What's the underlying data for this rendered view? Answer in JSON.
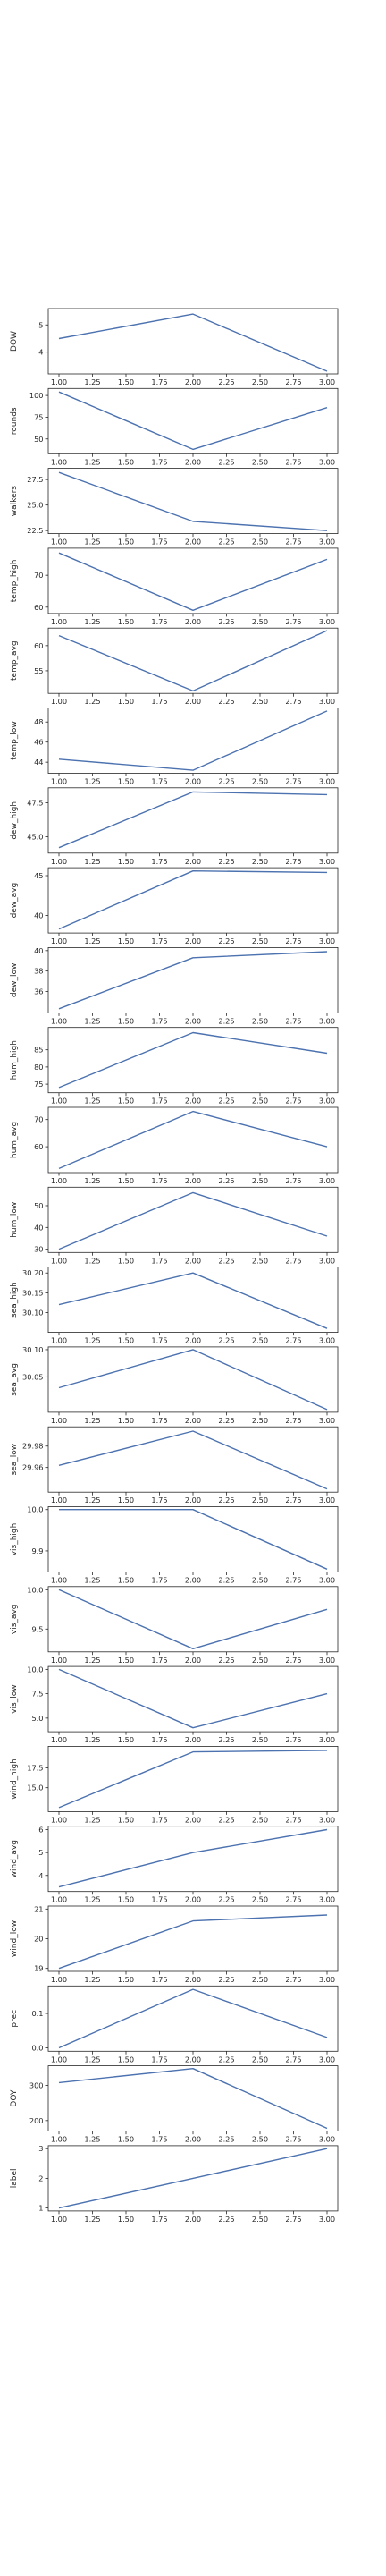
{
  "chart_data": {
    "type": "line",
    "x": [
      1,
      2,
      3
    ],
    "grid": false,
    "legend": "none",
    "line_color": "#4c72b0",
    "x_ticks_shown_on_last_panel_only": false,
    "panels": [
      {
        "ylabel": "DOW",
        "values": [
          4.5,
          5.4,
          3.3
        ],
        "ylim": [
          3.2,
          5.6
        ],
        "yticks": [
          4,
          5
        ]
      },
      {
        "ylabel": "rounds",
        "values": [
          104,
          38,
          86
        ],
        "ylim": [
          33,
          108
        ],
        "yticks": [
          50,
          75,
          100
        ]
      },
      {
        "ylabel": "walkers",
        "values": [
          28.2,
          23.4,
          22.5
        ],
        "ylim": [
          22.2,
          28.6
        ],
        "yticks": [
          22.5,
          25.0,
          27.5
        ]
      },
      {
        "ylabel": "temp_high",
        "values": [
          77,
          59,
          75
        ],
        "ylim": [
          58,
          78.5
        ],
        "yticks": [
          60,
          70
        ]
      },
      {
        "ylabel": "temp_avg",
        "values": [
          62,
          51,
          63
        ],
        "ylim": [
          50.5,
          63.5
        ],
        "yticks": [
          55,
          60
        ]
      },
      {
        "ylabel": "temp_low",
        "values": [
          44.3,
          43.2,
          49.1
        ],
        "ylim": [
          42.9,
          49.4
        ],
        "yticks": [
          44,
          46,
          48
        ]
      },
      {
        "ylabel": "dew_high",
        "values": [
          44.2,
          48.3,
          48.1
        ],
        "ylim": [
          43.8,
          48.6
        ],
        "yticks": [
          45.0,
          47.5
        ]
      },
      {
        "ylabel": "dew_avg",
        "values": [
          38.3,
          45.6,
          45.4
        ],
        "ylim": [
          37.8,
          46.0
        ],
        "yticks": [
          40,
          45
        ]
      },
      {
        "ylabel": "dew_low",
        "values": [
          34.3,
          39.3,
          39.9
        ],
        "ylim": [
          33.9,
          40.3
        ],
        "yticks": [
          36,
          38,
          40
        ]
      },
      {
        "ylabel": "hum_high",
        "values": [
          74,
          90,
          84
        ],
        "ylim": [
          72.5,
          91.5
        ],
        "yticks": [
          75,
          80,
          85
        ]
      },
      {
        "ylabel": "hum_avg",
        "values": [
          52,
          73,
          60
        ],
        "ylim": [
          50.5,
          74.5
        ],
        "yticks": [
          60,
          70
        ]
      },
      {
        "ylabel": "hum_low",
        "values": [
          30,
          56,
          36
        ],
        "ylim": [
          28.5,
          58.5
        ],
        "yticks": [
          30,
          40,
          50
        ]
      },
      {
        "ylabel": "sea_high",
        "values": [
          30.12,
          30.2,
          30.06
        ],
        "ylim": [
          30.05,
          30.215
        ],
        "yticks": [
          30.1,
          30.15,
          30.2
        ]
      },
      {
        "ylabel": "sea_avg",
        "values": [
          30.03,
          30.1,
          29.99
        ],
        "ylim": [
          29.985,
          30.105
        ],
        "yticks": [
          30.05,
          30.1
        ]
      },
      {
        "ylabel": "sea_low",
        "values": [
          29.962,
          29.994,
          29.94
        ],
        "ylim": [
          29.937,
          29.998
        ],
        "yticks": [
          29.96,
          29.98
        ]
      },
      {
        "ylabel": "vis_high",
        "values": [
          10.0,
          10.0,
          9.856
        ],
        "ylim": [
          9.849,
          10.007
        ],
        "yticks": [
          9.9,
          10.0
        ]
      },
      {
        "ylabel": "vis_avg",
        "values": [
          10.0,
          9.25,
          9.75
        ],
        "ylim": [
          9.21,
          10.04
        ],
        "yticks": [
          9.5,
          10.0
        ]
      },
      {
        "ylabel": "vis_low",
        "values": [
          10.0,
          4.0,
          7.5
        ],
        "ylim": [
          3.6,
          10.3
        ],
        "yticks": [
          5.0,
          7.5,
          10.0
        ]
      },
      {
        "ylabel": "wind_high",
        "values": [
          12.5,
          19.5,
          19.7
        ],
        "ylim": [
          12.0,
          20.2
        ],
        "yticks": [
          15,
          17.5
        ]
      },
      {
        "ylabel": "wind_avg",
        "values": [
          3.5,
          5.0,
          6.0
        ],
        "ylim": [
          3.3,
          6.15
        ],
        "yticks": [
          4,
          5,
          6
        ]
      },
      {
        "ylabel": "wind_low",
        "values": [
          19.0,
          20.6,
          20.8
        ],
        "ylim": [
          18.9,
          21.1
        ],
        "yticks": [
          19,
          20,
          21
        ]
      },
      {
        "ylabel": "prec",
        "values": [
          0.0,
          0.17,
          0.03
        ],
        "ylim": [
          -0.01,
          0.18
        ],
        "yticks": [
          0.0,
          0.1
        ]
      },
      {
        "ylabel": "DOY",
        "values": [
          308,
          348,
          178
        ],
        "ylim": [
          170,
          356
        ],
        "yticks": [
          200,
          300
        ]
      },
      {
        "ylabel": "label",
        "values": [
          1,
          2,
          3
        ],
        "ylim": [
          0.9,
          3.1
        ],
        "yticks": [
          1,
          2,
          3
        ]
      }
    ],
    "xticks": [
      1.0,
      1.25,
      1.5,
      1.75,
      2.0,
      2.25,
      2.5,
      2.75,
      3.0
    ],
    "xtick_labels": [
      "1.00",
      "1.25",
      "1.50",
      "1.75",
      "2.00",
      "2.25",
      "2.50",
      "2.75",
      "3.00"
    ]
  }
}
